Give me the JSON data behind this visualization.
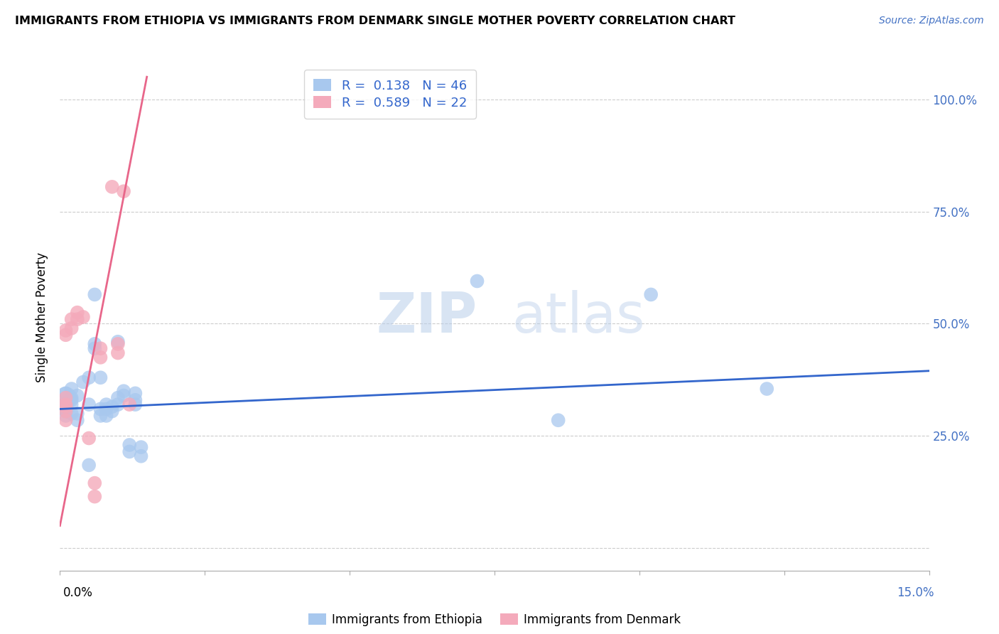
{
  "title": "IMMIGRANTS FROM ETHIOPIA VS IMMIGRANTS FROM DENMARK SINGLE MOTHER POVERTY CORRELATION CHART",
  "source": "Source: ZipAtlas.com",
  "ylabel": "Single Mother Poverty",
  "blue_label": "Immigrants from Ethiopia",
  "pink_label": "Immigrants from Denmark",
  "blue_R": 0.138,
  "blue_N": 46,
  "pink_R": 0.589,
  "pink_N": 22,
  "blue_color": "#A8C8EE",
  "pink_color": "#F4AABB",
  "blue_line_color": "#3366CC",
  "pink_line_color": "#E8668A",
  "watermark_zip": "ZIP",
  "watermark_atlas": "atlas",
  "xlim": [
    0.0,
    0.15
  ],
  "ylim": [
    -0.05,
    1.08
  ],
  "y_ticks": [
    0.0,
    0.25,
    0.5,
    0.75,
    1.0
  ],
  "y_tick_labels": [
    "",
    "25.0%",
    "50.0%",
    "75.0%",
    "100.0%"
  ],
  "blue_points": [
    [
      0.001,
      0.335
    ],
    [
      0.001,
      0.345
    ],
    [
      0.001,
      0.315
    ],
    [
      0.001,
      0.325
    ],
    [
      0.001,
      0.295
    ],
    [
      0.001,
      0.305
    ],
    [
      0.001,
      0.31
    ],
    [
      0.002,
      0.33
    ],
    [
      0.002,
      0.32
    ],
    [
      0.002,
      0.355
    ],
    [
      0.002,
      0.3
    ],
    [
      0.002,
      0.335
    ],
    [
      0.003,
      0.34
    ],
    [
      0.003,
      0.3
    ],
    [
      0.003,
      0.285
    ],
    [
      0.004,
      0.37
    ],
    [
      0.005,
      0.185
    ],
    [
      0.005,
      0.32
    ],
    [
      0.005,
      0.38
    ],
    [
      0.006,
      0.565
    ],
    [
      0.006,
      0.445
    ],
    [
      0.006,
      0.455
    ],
    [
      0.007,
      0.295
    ],
    [
      0.007,
      0.31
    ],
    [
      0.007,
      0.38
    ],
    [
      0.008,
      0.31
    ],
    [
      0.008,
      0.32
    ],
    [
      0.008,
      0.295
    ],
    [
      0.009,
      0.315
    ],
    [
      0.009,
      0.305
    ],
    [
      0.01,
      0.32
    ],
    [
      0.01,
      0.46
    ],
    [
      0.01,
      0.335
    ],
    [
      0.011,
      0.34
    ],
    [
      0.011,
      0.35
    ],
    [
      0.012,
      0.23
    ],
    [
      0.012,
      0.215
    ],
    [
      0.013,
      0.32
    ],
    [
      0.013,
      0.345
    ],
    [
      0.013,
      0.33
    ],
    [
      0.014,
      0.225
    ],
    [
      0.014,
      0.205
    ],
    [
      0.072,
      0.595
    ],
    [
      0.086,
      0.285
    ],
    [
      0.102,
      0.565
    ],
    [
      0.122,
      0.355
    ]
  ],
  "blue_sizes": [
    500,
    200,
    200,
    200,
    200,
    200,
    200,
    200,
    200,
    200,
    200,
    200,
    200,
    200,
    200,
    200,
    200,
    200,
    200,
    200,
    200,
    200,
    200,
    200,
    200,
    200,
    200,
    200,
    200,
    200,
    200,
    200,
    200,
    200,
    200,
    200,
    200,
    200,
    200,
    200,
    200,
    200,
    200,
    200,
    200,
    200
  ],
  "pink_points": [
    [
      0.001,
      0.335
    ],
    [
      0.001,
      0.315
    ],
    [
      0.001,
      0.305
    ],
    [
      0.001,
      0.32
    ],
    [
      0.001,
      0.285
    ],
    [
      0.001,
      0.485
    ],
    [
      0.001,
      0.475
    ],
    [
      0.002,
      0.49
    ],
    [
      0.002,
      0.51
    ],
    [
      0.003,
      0.525
    ],
    [
      0.003,
      0.51
    ],
    [
      0.004,
      0.515
    ],
    [
      0.005,
      0.245
    ],
    [
      0.006,
      0.145
    ],
    [
      0.006,
      0.115
    ],
    [
      0.007,
      0.425
    ],
    [
      0.007,
      0.445
    ],
    [
      0.009,
      0.805
    ],
    [
      0.01,
      0.435
    ],
    [
      0.01,
      0.455
    ],
    [
      0.011,
      0.795
    ],
    [
      0.012,
      0.32
    ]
  ],
  "pink_sizes": [
    200,
    200,
    200,
    200,
    200,
    200,
    200,
    200,
    200,
    200,
    200,
    200,
    200,
    200,
    200,
    200,
    200,
    200,
    200,
    200,
    200,
    200
  ],
  "blue_trend_x": [
    0.0,
    0.15
  ],
  "blue_trend_y": [
    0.31,
    0.395
  ],
  "pink_trend_x": [
    0.0,
    0.015
  ],
  "pink_trend_y": [
    0.05,
    1.05
  ]
}
